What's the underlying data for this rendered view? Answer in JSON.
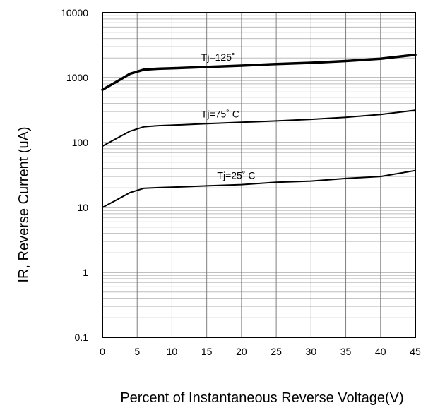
{
  "chart_data": {
    "type": "line",
    "title": "",
    "xlabel": "Percent of Instantaneous Reverse Voltage(V)",
    "ylabel": "IR, Reverse Current (uA)",
    "xlim": [
      0,
      45
    ],
    "ylim": [
      0.1,
      10000
    ],
    "yscale": "log",
    "grid": true,
    "x_ticks": [
      "0",
      "5",
      "10",
      "15",
      "20",
      "25",
      "30",
      "35",
      "40",
      "45"
    ],
    "y_ticks": [
      "0.1",
      "1",
      "10",
      "100",
      "1000",
      "10000"
    ],
    "series": [
      {
        "name": "Tj=125˚",
        "stroke_width": 3.5,
        "x": [
          0,
          2,
          4,
          6,
          8,
          10,
          15,
          20,
          25,
          30,
          35,
          40,
          45
        ],
        "y": [
          650,
          860,
          1150,
          1330,
          1370,
          1390,
          1460,
          1530,
          1620,
          1690,
          1800,
          1950,
          2250
        ]
      },
      {
        "name": "Tj=75˚ C",
        "stroke_width": 2,
        "x": [
          0,
          2,
          4,
          6,
          8,
          10,
          15,
          20,
          25,
          30,
          35,
          40,
          45
        ],
        "y": [
          88,
          115,
          150,
          175,
          182,
          185,
          195,
          205,
          215,
          228,
          245,
          270,
          315
        ]
      },
      {
        "name": "Tj=25˚ C",
        "stroke_width": 2,
        "x": [
          0,
          2,
          4,
          6,
          8,
          10,
          15,
          20,
          25,
          30,
          35,
          40,
          45
        ],
        "y": [
          10,
          13,
          17,
          19.8,
          20.2,
          20.5,
          21.5,
          22.5,
          24.5,
          25.5,
          28,
          30,
          37
        ]
      }
    ]
  }
}
